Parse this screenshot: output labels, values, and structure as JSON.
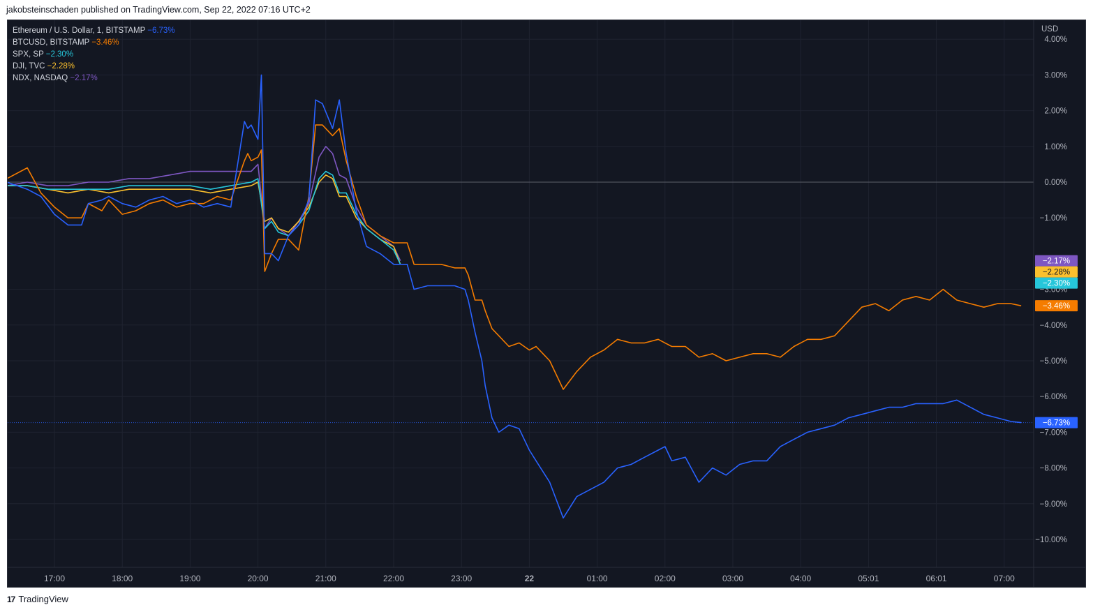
{
  "header": {
    "published_text": "jakobsteinschaden published on TradingView.com, Sep 22, 2022 07:16 UTC+2"
  },
  "footer": {
    "brand": "TradingView",
    "logo_glyph": "17"
  },
  "colors": {
    "background": "#131722",
    "eth": "#2962ff",
    "btc": "#f57c00",
    "spx": "#26c6da",
    "dji": "#fbc02d",
    "ndx": "#7e57c2",
    "axis_text": "#b2b5be",
    "grid": "#1f2330"
  },
  "chart_data": {
    "type": "line",
    "y_unit": "USD",
    "ylim": [
      -10.8,
      4.2
    ],
    "y_ticks": [
      "4.00%",
      "3.00%",
      "2.00%",
      "1.00%",
      "0.00%",
      "−1.00%",
      "−3.00%",
      "−4.00%",
      "−5.00%",
      "−6.00%",
      "−7.00%",
      "−8.00%",
      "−9.00%",
      "−10.00%"
    ],
    "y_tick_values": [
      4,
      3,
      2,
      1,
      0,
      -1,
      -3,
      -4,
      -5,
      -6,
      -7,
      -8,
      -9,
      -10
    ],
    "x_ticks": [
      "17:00",
      "18:00",
      "19:00",
      "20:00",
      "21:00",
      "22:00",
      "23:00",
      "22",
      "01:00",
      "02:00",
      "03:00",
      "04:00",
      "05:01",
      "06:01",
      "07:00"
    ],
    "x_tick_values": [
      17,
      18,
      19,
      20,
      21,
      22,
      23,
      24,
      25,
      26,
      27,
      28,
      29,
      30,
      31
    ],
    "xlim": [
      16.3,
      31.6
    ],
    "grid": true,
    "legend_position": "top-left",
    "series": [
      {
        "key": "eth",
        "name": "Ethereum / U.S. Dollar, 1, BITSTAMP",
        "change": "−6.73%",
        "x": [
          16.3,
          16.6,
          16.8,
          17.0,
          17.2,
          17.4,
          17.5,
          17.7,
          17.8,
          18.0,
          18.2,
          18.4,
          18.6,
          18.8,
          19.0,
          19.2,
          19.4,
          19.6,
          19.8,
          19.85,
          19.9,
          20.0,
          20.05,
          20.1,
          20.2,
          20.3,
          20.45,
          20.6,
          20.75,
          20.85,
          20.95,
          21.1,
          21.2,
          21.3,
          21.45,
          21.6,
          21.8,
          22.0,
          22.2,
          22.3,
          22.5,
          22.7,
          22.9,
          23.05,
          23.1,
          23.2,
          23.3,
          23.35,
          23.45,
          23.55,
          23.7,
          23.85,
          24.0,
          24.1,
          24.3,
          24.5,
          24.7,
          24.9,
          25.1,
          25.3,
          25.5,
          25.7,
          25.9,
          26.0,
          26.1,
          26.3,
          26.5,
          26.7,
          26.9,
          27.1,
          27.3,
          27.5,
          27.7,
          27.9,
          28.1,
          28.3,
          28.5,
          28.7,
          28.9,
          29.1,
          29.3,
          29.5,
          29.7,
          29.9,
          30.1,
          30.3,
          30.5,
          30.7,
          30.9,
          31.1,
          31.25
        ],
        "y": [
          0.0,
          -0.2,
          -0.4,
          -0.9,
          -1.2,
          -1.2,
          -0.6,
          -0.5,
          -0.4,
          -0.6,
          -0.7,
          -0.5,
          -0.4,
          -0.6,
          -0.5,
          -0.7,
          -0.6,
          -0.7,
          1.7,
          1.5,
          1.6,
          1.2,
          3.0,
          -2.0,
          -2.0,
          -2.2,
          -1.5,
          -1.2,
          -0.5,
          2.3,
          2.2,
          1.5,
          2.3,
          0.8,
          -0.8,
          -1.8,
          -2.0,
          -2.3,
          -2.3,
          -3.0,
          -2.9,
          -2.9,
          -2.9,
          -3.0,
          -3.3,
          -4.2,
          -5.0,
          -5.7,
          -6.6,
          -7.0,
          -6.8,
          -6.9,
          -7.5,
          -7.8,
          -8.4,
          -9.4,
          -8.8,
          -8.6,
          -8.4,
          -8.0,
          -7.9,
          -7.7,
          -7.5,
          -7.4,
          -7.8,
          -7.7,
          -8.4,
          -8.0,
          -8.2,
          -7.9,
          -7.8,
          -7.8,
          -7.4,
          -7.2,
          -7.0,
          -6.9,
          -6.8,
          -6.6,
          -6.5,
          -6.4,
          -6.3,
          -6.3,
          -6.2,
          -6.2,
          -6.2,
          -6.1,
          -6.3,
          -6.5,
          -6.6,
          -6.7,
          -6.73
        ]
      },
      {
        "key": "btc",
        "name": "BTCUSD, BITSTAMP",
        "change": "−3.46%",
        "x": [
          16.3,
          16.6,
          16.8,
          17.0,
          17.2,
          17.4,
          17.5,
          17.7,
          17.8,
          18.0,
          18.2,
          18.4,
          18.6,
          18.8,
          19.0,
          19.2,
          19.4,
          19.6,
          19.8,
          19.85,
          19.9,
          20.0,
          20.05,
          20.1,
          20.2,
          20.3,
          20.45,
          20.6,
          20.75,
          20.85,
          20.95,
          21.1,
          21.2,
          21.3,
          21.45,
          21.6,
          21.8,
          22.0,
          22.2,
          22.3,
          22.5,
          22.7,
          22.9,
          23.05,
          23.1,
          23.2,
          23.3,
          23.35,
          23.45,
          23.55,
          23.7,
          23.85,
          24.0,
          24.1,
          24.3,
          24.5,
          24.7,
          24.9,
          25.1,
          25.3,
          25.5,
          25.7,
          25.9,
          26.0,
          26.1,
          26.3,
          26.5,
          26.7,
          26.9,
          27.1,
          27.3,
          27.5,
          27.7,
          27.9,
          28.1,
          28.3,
          28.5,
          28.7,
          28.9,
          29.1,
          29.3,
          29.5,
          29.7,
          29.9,
          30.1,
          30.3,
          30.5,
          30.7,
          30.9,
          31.1,
          31.25
        ],
        "y": [
          0.1,
          0.4,
          -0.3,
          -0.7,
          -1.0,
          -1.0,
          -0.6,
          -0.8,
          -0.5,
          -0.9,
          -0.8,
          -0.6,
          -0.5,
          -0.7,
          -0.6,
          -0.6,
          -0.4,
          -0.5,
          0.6,
          0.8,
          0.6,
          0.7,
          0.9,
          -2.5,
          -2.0,
          -1.6,
          -1.6,
          -1.9,
          -0.4,
          1.6,
          1.6,
          1.3,
          1.5,
          0.6,
          -0.4,
          -1.2,
          -1.5,
          -1.7,
          -1.7,
          -2.3,
          -2.3,
          -2.3,
          -2.4,
          -2.4,
          -2.6,
          -3.3,
          -3.3,
          -3.6,
          -4.1,
          -4.3,
          -4.6,
          -4.5,
          -4.7,
          -4.6,
          -5.0,
          -5.8,
          -5.3,
          -4.9,
          -4.7,
          -4.4,
          -4.5,
          -4.5,
          -4.4,
          -4.5,
          -4.6,
          -4.6,
          -4.9,
          -4.8,
          -5.0,
          -4.9,
          -4.8,
          -4.8,
          -4.9,
          -4.6,
          -4.4,
          -4.4,
          -4.3,
          -3.9,
          -3.5,
          -3.4,
          -3.6,
          -3.3,
          -3.2,
          -3.3,
          -3.0,
          -3.3,
          -3.4,
          -3.5,
          -3.4,
          -3.4,
          -3.46
        ]
      },
      {
        "key": "spx",
        "name": "SPX, SP",
        "change": "−2.30%",
        "x": [
          16.3,
          16.6,
          16.9,
          17.2,
          17.5,
          17.8,
          18.1,
          18.4,
          18.7,
          19.0,
          19.3,
          19.6,
          19.9,
          20.0,
          20.1,
          20.2,
          20.3,
          20.45,
          20.6,
          20.75,
          20.9,
          21.0,
          21.1,
          21.2,
          21.3,
          21.45,
          21.6,
          21.8,
          22.0,
          22.1
        ],
        "y": [
          -0.1,
          -0.1,
          -0.2,
          -0.2,
          -0.2,
          -0.2,
          -0.1,
          -0.1,
          -0.1,
          -0.1,
          -0.2,
          -0.1,
          0.0,
          0.1,
          -1.3,
          -1.1,
          -1.4,
          -1.5,
          -1.2,
          -0.8,
          0.1,
          0.3,
          0.2,
          -0.3,
          -0.3,
          -0.9,
          -1.3,
          -1.6,
          -1.9,
          -2.3
        ]
      },
      {
        "key": "dji",
        "name": "DJI, TVC",
        "change": "−2.28%",
        "x": [
          16.3,
          16.6,
          16.9,
          17.2,
          17.5,
          17.8,
          18.1,
          18.4,
          18.7,
          19.0,
          19.3,
          19.6,
          19.9,
          20.0,
          20.1,
          20.2,
          20.3,
          20.45,
          20.6,
          20.75,
          20.9,
          21.0,
          21.1,
          21.2,
          21.3,
          21.45,
          21.6,
          21.8,
          22.0,
          22.1
        ],
        "y": [
          -0.1,
          -0.1,
          -0.2,
          -0.3,
          -0.2,
          -0.3,
          -0.2,
          -0.2,
          -0.2,
          -0.2,
          -0.3,
          -0.2,
          -0.1,
          0.0,
          -1.1,
          -1.0,
          -1.3,
          -1.4,
          -1.1,
          -0.7,
          0.0,
          0.2,
          0.1,
          -0.4,
          -0.4,
          -1.0,
          -1.3,
          -1.6,
          -1.8,
          -2.3
        ]
      },
      {
        "key": "ndx",
        "name": "NDX, NASDAQ",
        "change": "−2.17%",
        "x": [
          16.3,
          16.6,
          16.9,
          17.2,
          17.5,
          17.8,
          18.1,
          18.4,
          18.7,
          19.0,
          19.3,
          19.6,
          19.9,
          20.0,
          20.1,
          20.2,
          20.3,
          20.45,
          20.6,
          20.75,
          20.9,
          21.0,
          21.1,
          21.2,
          21.3,
          21.45,
          21.6,
          21.8,
          22.0,
          22.1
        ],
        "y": [
          -0.1,
          0.0,
          -0.1,
          -0.1,
          0.0,
          0.0,
          0.1,
          0.1,
          0.2,
          0.3,
          0.3,
          0.3,
          0.3,
          0.5,
          -1.3,
          -1.0,
          -1.3,
          -1.5,
          -1.1,
          -0.6,
          0.7,
          1.0,
          0.8,
          0.2,
          0.1,
          -0.7,
          -1.2,
          -1.5,
          -1.8,
          -2.2
        ]
      }
    ]
  }
}
